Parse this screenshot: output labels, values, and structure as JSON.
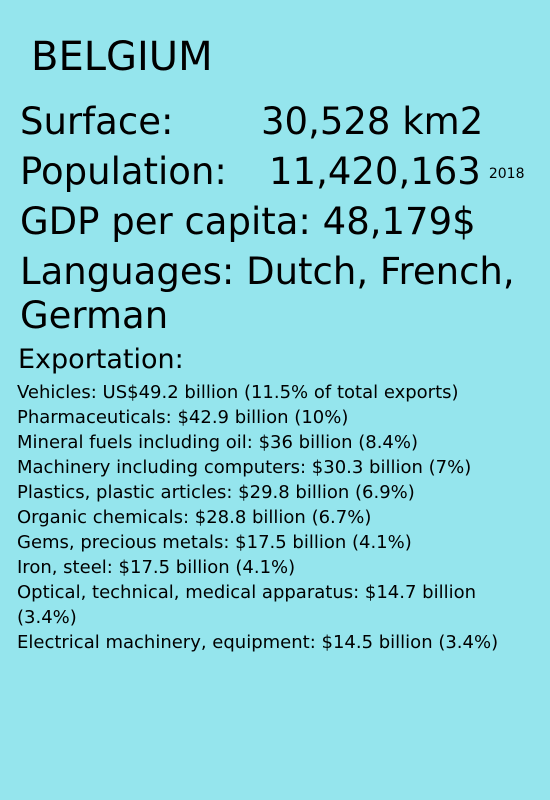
{
  "country": "BELGIUM",
  "surface": {
    "label": "Surface:",
    "value": "30,528 km2"
  },
  "population": {
    "label": "Population:",
    "value": "11,420,163",
    "year": "2018"
  },
  "gdp": {
    "text": "GDP per capita: 48,179$"
  },
  "languages": {
    "text": "Languages: Dutch, French, German"
  },
  "exportation": {
    "heading": "Exportation:",
    "items": [
      "Vehicles: US$49.2 billion (11.5% of total exports)",
      "Pharmaceuticals: $42.9 billion (10%)",
      "Mineral fuels including oil: $36 billion (8.4%)",
      "Machinery including computers: $30.3 billion (7%)",
      "Plastics, plastic articles: $29.8 billion (6.9%)",
      "Organic chemicals: $28.8 billion (6.7%)",
      "Gems, precious metals: $17.5 billion (4.1%)",
      "Iron, steel: $17.5 billion (4.1%)",
      "Optical, technical, medical apparatus: $14.7 billion (3.4%)",
      "Electrical machinery, equipment: $14.5 billion (3.4%)"
    ]
  },
  "colors": {
    "background": "#95e5ed",
    "text": "#000000"
  }
}
